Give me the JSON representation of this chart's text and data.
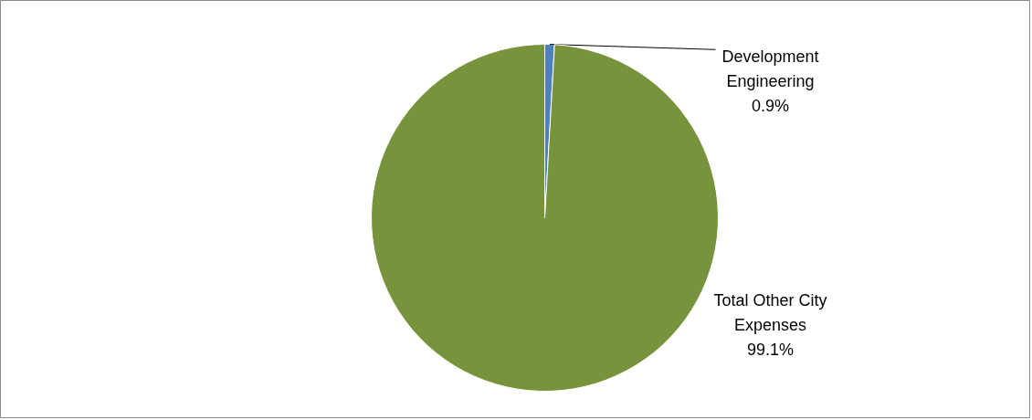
{
  "chart_data": {
    "type": "pie",
    "categories": [
      "Development Engineering",
      "Total Other City Expenses"
    ],
    "values": [
      0.9,
      99.1
    ],
    "colors": [
      "#4f81bd",
      "#77933c"
    ],
    "value_labels": [
      "0.9%",
      "99.1%"
    ]
  }
}
